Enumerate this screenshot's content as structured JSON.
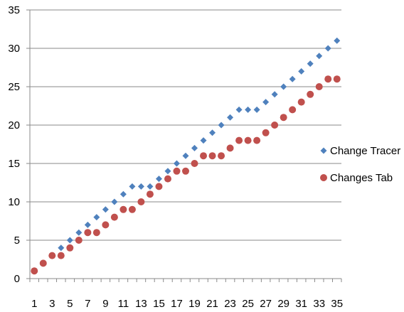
{
  "chart_data": {
    "type": "scatter",
    "title": "",
    "xlabel": "",
    "ylabel": "",
    "x": [
      1,
      2,
      3,
      4,
      5,
      6,
      7,
      8,
      9,
      10,
      11,
      12,
      13,
      14,
      15,
      16,
      17,
      18,
      19,
      20,
      21,
      22,
      23,
      24,
      25,
      26,
      27,
      28,
      29,
      30,
      31,
      32,
      33,
      34,
      35
    ],
    "xlim": [
      0.5,
      35.5
    ],
    "x_tick_labels": [
      1,
      3,
      5,
      7,
      9,
      11,
      13,
      15,
      17,
      19,
      21,
      23,
      25,
      27,
      29,
      31,
      33,
      35
    ],
    "ylim": [
      0,
      35
    ],
    "y_ticks": [
      0,
      5,
      10,
      15,
      20,
      25,
      30,
      35
    ],
    "grid": "horizontal",
    "legend_position": "right",
    "series": [
      {
        "name": "Change Tracer",
        "marker": "diamond",
        "color": "#4f81bd",
        "values": [
          1,
          2,
          3,
          4,
          5,
          6,
          7,
          8,
          9,
          10,
          11,
          12,
          12,
          12,
          13,
          14,
          15,
          16,
          17,
          18,
          19,
          20,
          21,
          22,
          22,
          22,
          23,
          24,
          25,
          26,
          27,
          28,
          29,
          30,
          31
        ]
      },
      {
        "name": "Changes Tab",
        "marker": "circle",
        "color": "#c0504d",
        "values": [
          1,
          2,
          3,
          3,
          4,
          5,
          6,
          6,
          7,
          8,
          9,
          9,
          10,
          11,
          12,
          13,
          14,
          14,
          15,
          16,
          16,
          16,
          17,
          18,
          18,
          18,
          19,
          20,
          21,
          22,
          23,
          24,
          25,
          26,
          26
        ]
      }
    ]
  }
}
